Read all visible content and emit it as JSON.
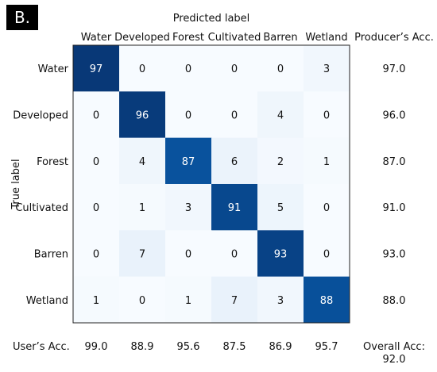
{
  "panel_label": "B.",
  "chart_data": {
    "type": "heatmap",
    "title": "",
    "xlabel": "Predicted label",
    "ylabel": "True label",
    "classes": [
      "Water",
      "Developed",
      "Forest",
      "Cultivated",
      "Barren",
      "Wetland"
    ],
    "matrix": [
      [
        97,
        0,
        0,
        0,
        0,
        3
      ],
      [
        0,
        96,
        0,
        0,
        4,
        0
      ],
      [
        0,
        4,
        87,
        6,
        2,
        1
      ],
      [
        0,
        1,
        3,
        91,
        5,
        0
      ],
      [
        0,
        7,
        0,
        0,
        93,
        0
      ],
      [
        1,
        0,
        1,
        7,
        3,
        88
      ]
    ],
    "producers_accuracy_label": "Producer’s Acc.",
    "producers_accuracy": [
      "97.0",
      "96.0",
      "87.0",
      "91.0",
      "93.0",
      "88.0"
    ],
    "users_accuracy_label": "User’s Acc.",
    "users_accuracy": [
      "99.0",
      "88.9",
      "95.6",
      "87.5",
      "86.9",
      "95.7"
    ],
    "overall_accuracy_label": "Overall Acc:",
    "overall_accuracy": "92.0",
    "colormap": "Blues",
    "value_range": [
      0,
      100
    ],
    "light_text_color": "#ffffff",
    "dark_text_color": "#111111"
  }
}
